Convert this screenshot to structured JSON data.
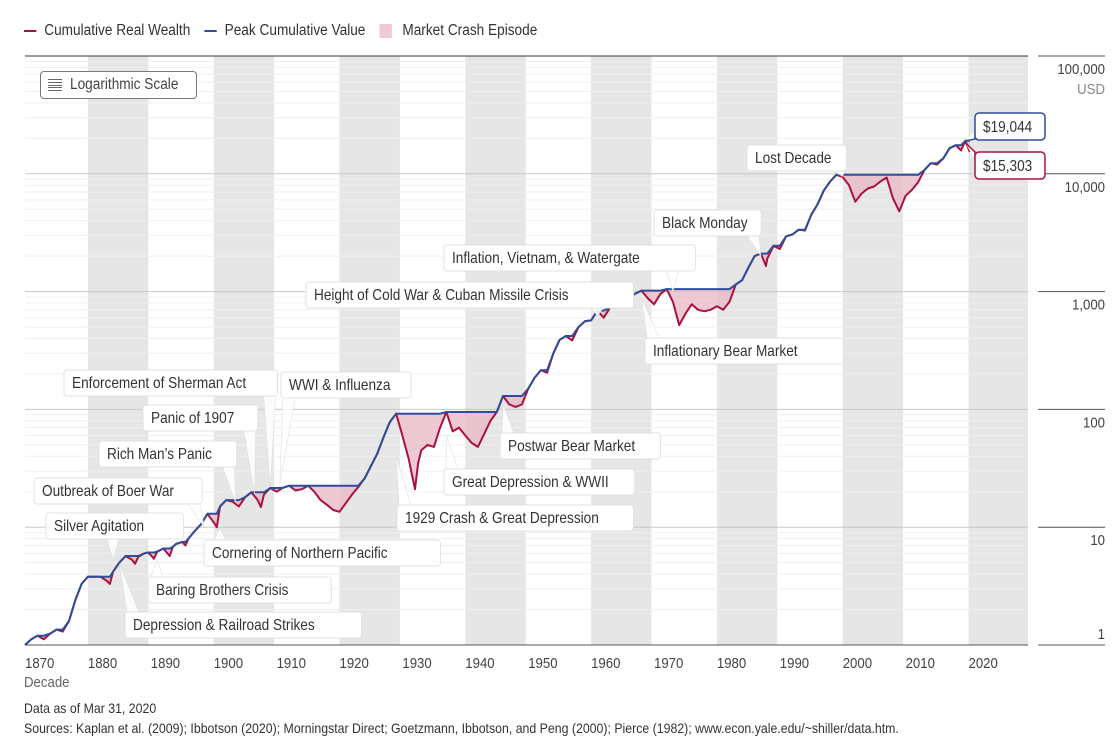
{
  "legend": {
    "items": [
      {
        "label": "Cumulative Real Wealth",
        "color": "#a8123e",
        "kind": "line"
      },
      {
        "label": "Peak Cumulative Value",
        "color": "#2e4d9c",
        "kind": "line"
      },
      {
        "label": "Market Crash Episode",
        "color": "#f0c9d3",
        "kind": "square"
      }
    ]
  },
  "scale_toggle": {
    "label": "Logarithmic Scale",
    "icon": "list-lines-icon"
  },
  "colors": {
    "wealth": "#a8123e",
    "peak": "#2e4d9c",
    "crash_fill": "#e8b7c4",
    "band": "#e6e6e6",
    "grid": "#e8e8e8"
  },
  "footer": {
    "data_as_of": "Data as of Mar 31, 2020",
    "sources": "Sources: Kaplan et al. (2009); Ibbotson (2020); Morningstar Direct; Goetzmann, Ibbotson, and Peng (2000); Pierce (1982); www.econ.yale.edu/~shiller/data.htm."
  },
  "chart_data": {
    "type": "line",
    "title": "",
    "xlabel": "Decade",
    "ylabel": "USD",
    "yscale": "log",
    "xlim": [
      1870,
      2029.5
    ],
    "ylim": [
      1,
      100000
    ],
    "x_ticks": [
      1870,
      1880,
      1890,
      1900,
      1910,
      1920,
      1930,
      1940,
      1950,
      1960,
      1970,
      1980,
      1990,
      2000,
      2010,
      2020
    ],
    "y_ticks": [
      {
        "value": 1,
        "label": "1"
      },
      {
        "value": 10,
        "label": "10"
      },
      {
        "value": 100,
        "label": "100"
      },
      {
        "value": 1000,
        "label": "1,000"
      },
      {
        "value": 10000,
        "label": "10,000"
      },
      {
        "value": 100000,
        "label": "100,000"
      }
    ],
    "y_unit_label": "USD",
    "shaded_decades": [
      1880,
      1900,
      1920,
      1940,
      1960,
      1980,
      2000,
      2020
    ],
    "series": [
      {
        "name": "Cumulative Real Wealth",
        "points": [
          [
            1870,
            1.0
          ],
          [
            1871,
            1.12
          ],
          [
            1872,
            1.2
          ],
          [
            1873,
            1.12
          ],
          [
            1874,
            1.25
          ],
          [
            1875,
            1.35
          ],
          [
            1876,
            1.3
          ],
          [
            1877,
            1.6
          ],
          [
            1878,
            2.4
          ],
          [
            1879,
            3.3
          ],
          [
            1880,
            3.8
          ],
          [
            1882,
            3.8
          ],
          [
            1883,
            3.5
          ],
          [
            1883.5,
            3.3
          ],
          [
            1884,
            4.2
          ],
          [
            1885,
            5.0
          ],
          [
            1886,
            5.7
          ],
          [
            1887,
            5.3
          ],
          [
            1887.5,
            4.9
          ],
          [
            1888,
            5.6
          ],
          [
            1889,
            6.0
          ],
          [
            1889.5,
            6.1
          ],
          [
            1890,
            5.8
          ],
          [
            1890.5,
            5.4
          ],
          [
            1891,
            6.2
          ],
          [
            1892,
            6.6
          ],
          [
            1893,
            5.7
          ],
          [
            1893.5,
            6.8
          ],
          [
            1894,
            7.2
          ],
          [
            1895,
            7.5
          ],
          [
            1895.5,
            7.0
          ],
          [
            1896,
            8.0
          ],
          [
            1897,
            9.3
          ],
          [
            1898,
            10.6
          ],
          [
            1899,
            13.0
          ],
          [
            1900,
            11.0
          ],
          [
            1900.5,
            10.0
          ],
          [
            1901,
            15.0
          ],
          [
            1902,
            17.0
          ],
          [
            1903,
            16.5
          ],
          [
            1904,
            15.0
          ],
          [
            1905,
            18.0
          ],
          [
            1906,
            19.8
          ],
          [
            1907,
            17.0
          ],
          [
            1907.5,
            14.8
          ],
          [
            1908,
            19.0
          ],
          [
            1909,
            21.5
          ],
          [
            1910,
            20.0
          ],
          [
            1911,
            21.6
          ],
          [
            1912,
            22.5
          ],
          [
            1913,
            20.5
          ],
          [
            1914,
            21.0
          ],
          [
            1915,
            22.5
          ],
          [
            1916,
            20.0
          ],
          [
            1917,
            17.0
          ],
          [
            1918,
            15.5
          ],
          [
            1919,
            14.0
          ],
          [
            1920,
            13.5
          ],
          [
            1921,
            16.0
          ],
          [
            1922,
            19.0
          ],
          [
            1923,
            22.0
          ],
          [
            1924,
            26.0
          ],
          [
            1925,
            33.0
          ],
          [
            1926,
            42.0
          ],
          [
            1927,
            58.0
          ],
          [
            1928,
            78.0
          ],
          [
            1929,
            92.0
          ],
          [
            1930,
            60.0
          ],
          [
            1931,
            38.0
          ],
          [
            1932,
            21.0
          ],
          [
            1932.5,
            35.0
          ],
          [
            1933,
            45.0
          ],
          [
            1934,
            50.0
          ],
          [
            1935,
            48.0
          ],
          [
            1936,
            70.0
          ],
          [
            1937,
            95.0
          ],
          [
            1938,
            65.0
          ],
          [
            1939,
            70.0
          ],
          [
            1940,
            60.0
          ],
          [
            1941,
            52.0
          ],
          [
            1942,
            48.0
          ],
          [
            1943,
            62.0
          ],
          [
            1944,
            80.0
          ],
          [
            1945,
            95.0
          ],
          [
            1946,
            130.0
          ],
          [
            1947,
            110.0
          ],
          [
            1948,
            105.0
          ],
          [
            1949,
            110.0
          ],
          [
            1950,
            150.0
          ],
          [
            1951,
            185.0
          ],
          [
            1952,
            215.0
          ],
          [
            1953,
            205.0
          ],
          [
            1954,
            300.0
          ],
          [
            1955,
            390.0
          ],
          [
            1956,
            420.0
          ],
          [
            1957,
            385.0
          ],
          [
            1958,
            500.0
          ],
          [
            1959,
            560.0
          ],
          [
            1960,
            570.0
          ],
          [
            1961,
            690.0
          ],
          [
            1962,
            600.0
          ],
          [
            1963,
            730.0
          ],
          [
            1964,
            860.0
          ],
          [
            1965,
            950.0
          ],
          [
            1966,
            870.0
          ],
          [
            1967,
            960.0
          ],
          [
            1968,
            1020.0
          ],
          [
            1969,
            880.0
          ],
          [
            1970,
            780.0
          ],
          [
            1971,
            950.0
          ],
          [
            1972,
            1050.0
          ],
          [
            1973,
            820.0
          ],
          [
            1974,
            520.0
          ],
          [
            1975,
            650.0
          ],
          [
            1976,
            780.0
          ],
          [
            1977,
            700.0
          ],
          [
            1978,
            680.0
          ],
          [
            1979,
            700.0
          ],
          [
            1980,
            750.0
          ],
          [
            1981,
            700.0
          ],
          [
            1982,
            820.0
          ],
          [
            1983,
            1150.0
          ],
          [
            1984,
            1250.0
          ],
          [
            1985,
            1600.0
          ],
          [
            1986,
            2000.0
          ],
          [
            1987,
            2100.0
          ],
          [
            1987.8,
            1650.0
          ],
          [
            1988,
            1900.0
          ],
          [
            1989,
            2450.0
          ],
          [
            1990,
            2300.0
          ],
          [
            1991,
            2950.0
          ],
          [
            1992,
            3050.0
          ],
          [
            1993,
            3350.0
          ],
          [
            1994,
            3300.0
          ],
          [
            1995,
            4500.0
          ],
          [
            1996,
            5500.0
          ],
          [
            1997,
            7200.0
          ],
          [
            1998,
            8600.0
          ],
          [
            1999,
            9800.0
          ],
          [
            2000,
            9400.0
          ],
          [
            2001,
            8000.0
          ],
          [
            2002,
            5800.0
          ],
          [
            2003,
            6800.0
          ],
          [
            2004,
            7500.0
          ],
          [
            2005,
            7800.0
          ],
          [
            2006,
            8600.0
          ],
          [
            2007,
            9300.0
          ],
          [
            2008,
            6200.0
          ],
          [
            2009,
            4800.0
          ],
          [
            2010,
            6500.0
          ],
          [
            2011,
            7300.0
          ],
          [
            2012,
            8500.0
          ],
          [
            2013,
            10800.0
          ],
          [
            2014,
            12300.0
          ],
          [
            2015,
            12000.0
          ],
          [
            2016,
            13500.0
          ],
          [
            2017,
            16500.0
          ],
          [
            2018,
            17500.0
          ],
          [
            2018.8,
            15800.0
          ],
          [
            2019.5,
            19044.0
          ],
          [
            2020.2,
            15303.0
          ]
        ]
      },
      {
        "name": "Peak Cumulative Value",
        "derived_from": "running maximum of Cumulative Real Wealth"
      }
    ],
    "callouts": [
      {
        "label": "$19,044",
        "series": "Peak Cumulative Value",
        "value": 19044
      },
      {
        "label": "$15,303",
        "series": "Cumulative Real Wealth",
        "value": 15303
      }
    ],
    "annotations": [
      {
        "label": "Silver Agitation",
        "year": 1884
      },
      {
        "label": "Outbreak of Boer War",
        "year": 1899
      },
      {
        "label": "Rich Man’s Panic",
        "year": 1903
      },
      {
        "label": "Panic of 1907",
        "year": 1906.5
      },
      {
        "label": "Enforcement of Sherman Act",
        "year": 1909
      },
      {
        "label": "WWI & Influenza",
        "year": 1910.5
      },
      {
        "label": "Depression & Railroad Strikes",
        "year": 1885
      },
      {
        "label": "Baring Brothers Crisis",
        "year": 1891
      },
      {
        "label": "Cornering of Northern Pacific",
        "year": 1901
      },
      {
        "label": "1929 Crash & Great Depression",
        "year": 1929
      },
      {
        "label": "Great Depression & WWII",
        "year": 1937
      },
      {
        "label": "Postwar Bear Market",
        "year": 1946
      },
      {
        "label": "Height of Cold War & Cuban Missile Crisis",
        "year": 1961
      },
      {
        "label": "Inflation, Vietnam, & Watergate",
        "year": 1973
      },
      {
        "label": "Inflationary Bear Market",
        "year": 1968
      },
      {
        "label": "Black Monday",
        "year": 1987
      },
      {
        "label": "Lost Decade",
        "year": 2000
      }
    ]
  }
}
